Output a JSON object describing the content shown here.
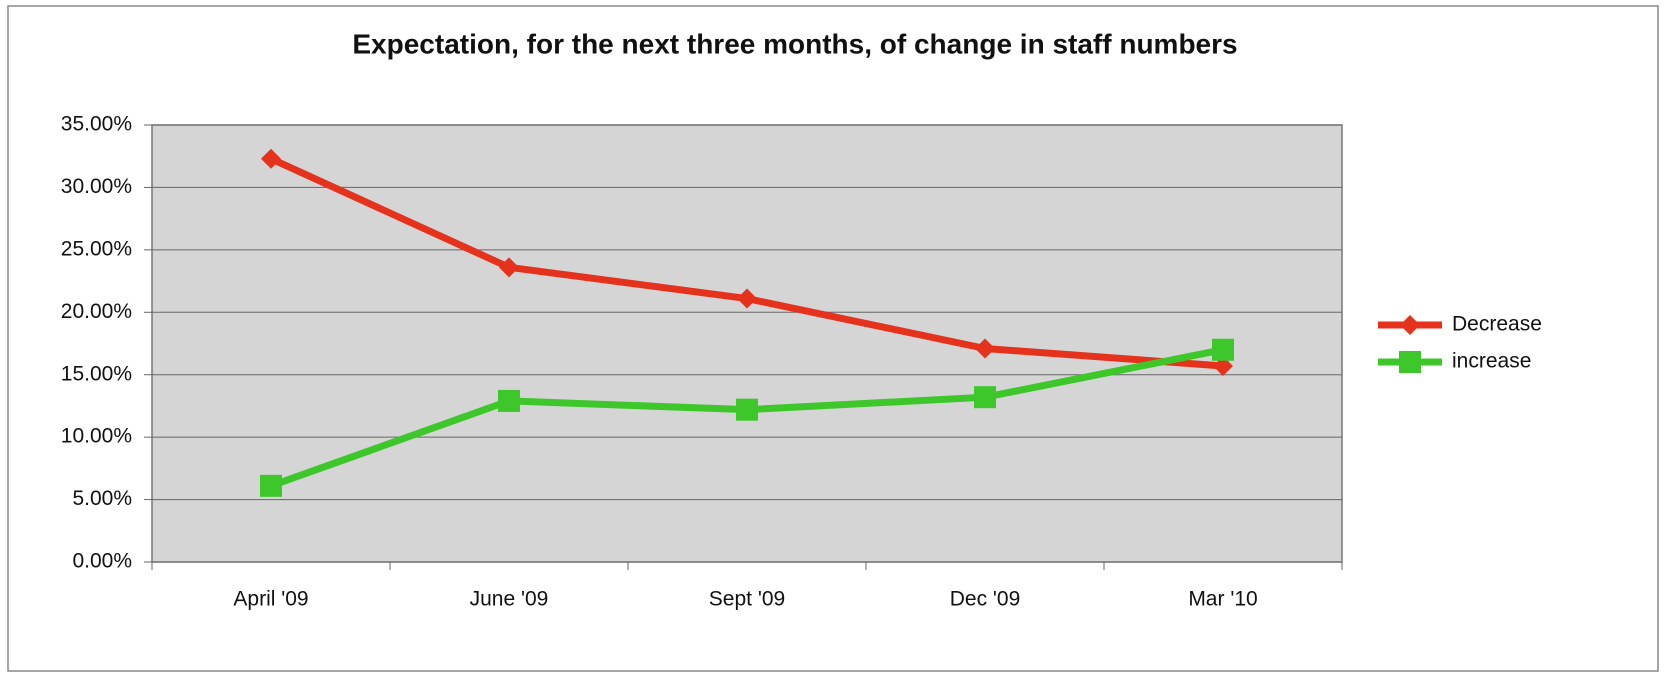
{
  "chart_data": {
    "type": "line",
    "title": "Expectation, for the next three months, of change in staff numbers",
    "categories": [
      "April '09",
      "June '09",
      "Sept '09",
      "Dec '09",
      "Mar '10"
    ],
    "series": [
      {
        "name": "Decrease",
        "color": "#e5321c",
        "marker": "diamond",
        "values": [
          32.3,
          23.6,
          21.1,
          17.1,
          15.7
        ]
      },
      {
        "name": "increase",
        "color": "#3dc72b",
        "marker": "square",
        "values": [
          6.1,
          12.9,
          12.2,
          13.2,
          17.0
        ]
      }
    ],
    "ylim": [
      0,
      35
    ],
    "yticks": [
      {
        "value": 0,
        "label": "0.00%"
      },
      {
        "value": 5,
        "label": "5.00%"
      },
      {
        "value": 10,
        "label": "10.00%"
      },
      {
        "value": 15,
        "label": "15.00%"
      },
      {
        "value": 20,
        "label": "20.00%"
      },
      {
        "value": 25,
        "label": "25.00%"
      },
      {
        "value": 30,
        "label": "30.00%"
      },
      {
        "value": 35,
        "label": "35.00%"
      }
    ],
    "grid": true,
    "legend": "right"
  }
}
